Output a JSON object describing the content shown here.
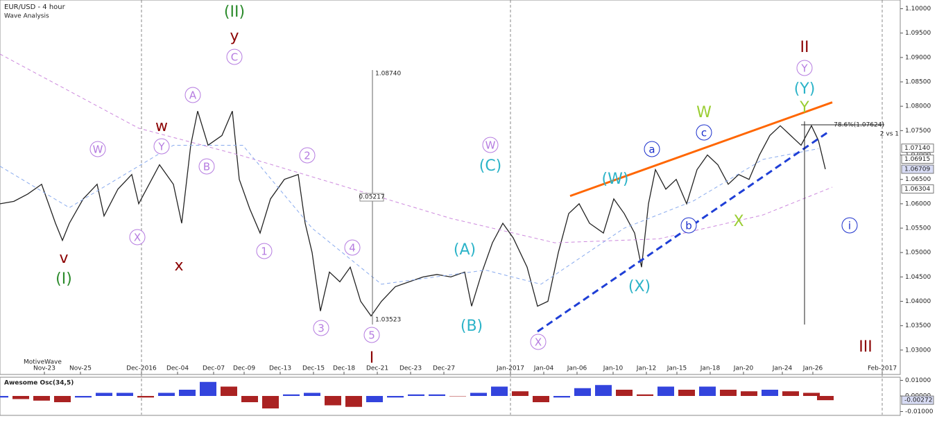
{
  "chart_data": [
    {
      "type": "line",
      "title": "EUR/USD - 4 hour",
      "subtitle": "Wave Analysis",
      "footer": "MotiveWave",
      "xlim": [
        0,
        322
      ],
      "ylim": [
        1.025,
        1.1015
      ],
      "xticks": [
        {
          "value": 16,
          "label": "Nov-23"
        },
        {
          "value": 29,
          "label": "Nov-25"
        },
        {
          "value": 51,
          "label": "Dec-2016"
        },
        {
          "value": 64,
          "label": "Dec-04"
        },
        {
          "value": 77,
          "label": "Dec-07"
        },
        {
          "value": 88,
          "label": "Dec-09"
        },
        {
          "value": 101,
          "label": "Dec-13"
        },
        {
          "value": 113,
          "label": "Dec-15"
        },
        {
          "value": 124,
          "label": "Dec-18"
        },
        {
          "value": 136,
          "label": "Dec-21"
        },
        {
          "value": 148,
          "label": "Dec-23"
        },
        {
          "value": 160,
          "label": "Dec-27"
        },
        {
          "value": 184,
          "label": "Jan-2017"
        },
        {
          "value": 196,
          "label": "Jan-04"
        },
        {
          "value": 208,
          "label": "Jan-06"
        },
        {
          "value": 221,
          "label": "Jan-10"
        },
        {
          "value": 233,
          "label": "Jan-12"
        },
        {
          "value": 244,
          "label": "Jan-15"
        },
        {
          "value": 256,
          "label": "Jan-18"
        },
        {
          "value": 268,
          "label": "Jan-20"
        },
        {
          "value": 282,
          "label": "Jan-24"
        },
        {
          "value": 293,
          "label": "Jan-26"
        },
        {
          "value": 318,
          "label": "Feb-2017"
        }
      ],
      "separators": [
        51,
        184,
        318
      ],
      "yticks": [
        {
          "value": 1.03,
          "label": "1.03000"
        },
        {
          "value": 1.035,
          "label": "1.03500"
        },
        {
          "value": 1.04,
          "label": "1.04000"
        },
        {
          "value": 1.045,
          "label": "1.04500"
        },
        {
          "value": 1.05,
          "label": "1.05000"
        },
        {
          "value": 1.055,
          "label": "1.05500"
        },
        {
          "value": 1.06,
          "label": "1.06000"
        },
        {
          "value": 1.065,
          "label": "1.06500"
        },
        {
          "value": 1.07,
          "label": "1.07000"
        },
        {
          "value": 1.075,
          "label": "1.07500"
        },
        {
          "value": 1.08,
          "label": "1.08000"
        },
        {
          "value": 1.085,
          "label": "1.08500"
        },
        {
          "value": 1.09,
          "label": "1.09000"
        },
        {
          "value": 1.095,
          "label": "1.09500"
        },
        {
          "value": 1.1,
          "label": "1.10000"
        }
      ],
      "price_tags": [
        {
          "value": 1.0714,
          "label": "1.07140",
          "highlight": false
        },
        {
          "value": 1.06915,
          "label": "1.06915",
          "highlight": false
        },
        {
          "value": 1.06709,
          "label": "1.06709",
          "highlight": true
        },
        {
          "value": 1.06304,
          "label": "1.06304",
          "highlight": false
        }
      ],
      "series": [
        {
          "color": "#222222",
          "dash": false,
          "x": [
            0,
            5,
            10,
            15,
            20,
            22.5,
            25,
            30,
            35,
            37.5,
            42.5,
            47.5,
            50,
            53.75,
            57.5,
            62.5,
            65.5,
            68.75,
            71.25,
            75,
            80,
            83.75,
            86.25,
            90,
            93.75,
            97.5,
            102.5,
            107.5,
            110,
            112.5,
            115.5,
            118.75,
            122.5,
            126.25,
            130,
            133.75,
            137.5,
            142.5,
            147.5,
            152.5,
            157.5,
            162.5,
            167.5,
            170,
            173.75,
            177.5,
            181.25,
            185,
            190,
            193.75,
            197.5,
            201.25,
            205,
            208.75,
            212.5,
            217.5,
            221.25,
            225,
            228.75,
            231.25,
            233.75,
            236.25,
            240,
            243.75,
            247.5,
            251.25,
            255,
            258.75,
            262.5,
            266.25,
            270,
            273.75,
            277.5,
            281.25,
            285,
            288.75,
            292.5,
            295,
            297.5
          ],
          "values": [
            1.06,
            1.0605,
            1.062,
            1.064,
            1.056,
            1.0525,
            1.056,
            1.061,
            1.064,
            1.0575,
            1.063,
            1.066,
            1.06,
            1.064,
            1.068,
            1.064,
            1.056,
            1.072,
            1.079,
            1.072,
            1.074,
            1.079,
            1.065,
            1.059,
            1.054,
            1.061,
            1.065,
            1.066,
            1.056,
            1.05,
            1.038,
            1.046,
            1.044,
            1.047,
            1.04,
            1.037,
            1.04,
            1.043,
            1.044,
            1.045,
            1.0455,
            1.045,
            1.046,
            1.039,
            1.046,
            1.052,
            1.056,
            1.053,
            1.047,
            1.039,
            1.04,
            1.05,
            1.058,
            1.06,
            1.056,
            1.054,
            1.061,
            1.058,
            1.054,
            1.047,
            1.06,
            1.067,
            1.063,
            1.065,
            1.06,
            1.067,
            1.07,
            1.068,
            1.064,
            1.066,
            1.065,
            1.07,
            1.074,
            1.076,
            1.074,
            1.072,
            1.076,
            1.073,
            1.0671
          ]
        },
        {
          "color": "#cc88dd",
          "dash": true,
          "x": [
            0,
            50,
            87.5,
            125,
            162.5,
            200,
            237.5,
            275,
            300
          ],
          "values": [
            1.0907,
            1.0755,
            1.0698,
            1.0634,
            1.057,
            1.052,
            1.0528,
            1.0577,
            1.0634
          ]
        },
        {
          "color": "#88aaee",
          "dash": true,
          "x": [
            0,
            25,
            62.5,
            87.5,
            112.5,
            137.5,
            175,
            195,
            225,
            250,
            275,
            295
          ],
          "values": [
            1.0677,
            1.0592,
            1.072,
            1.072,
            1.055,
            1.0435,
            1.0464,
            1.0435,
            1.055,
            1.0606,
            1.0691,
            1.0713
          ]
        }
      ],
      "trendlines": [
        {
          "color": "#ff6600",
          "dash": false,
          "x": [
            205.5,
            300
          ],
          "values": [
            1.0616,
            1.0808
          ]
        },
        {
          "color": "#1f3fd6",
          "dash": true,
          "x": [
            193.75,
            298.75
          ],
          "values": [
            1.0338,
            1.0748
          ]
        }
      ],
      "labels": [
        "1.08740",
        "0.05217",
        "1.03523",
        "78.6%(1.07624)",
        "2 vs 1"
      ],
      "annotations": [
        {
          "text": "(II)",
          "color": "#2a8a2a",
          "circled": false
        },
        {
          "text": "y",
          "color": "#8b0000",
          "circled": false
        },
        {
          "text": "C",
          "color": "#b57be0",
          "circled": true
        },
        {
          "text": "A",
          "color": "#b57be0",
          "circled": true
        },
        {
          "text": "B",
          "color": "#b57be0",
          "circled": true
        },
        {
          "text": "W",
          "color": "#b57be0",
          "circled": true
        },
        {
          "text": "Y",
          "color": "#b57be0",
          "circled": true
        },
        {
          "text": "w",
          "color": "#8b0000",
          "circled": false
        },
        {
          "text": "X",
          "color": "#b57be0",
          "circled": true
        },
        {
          "text": "x",
          "color": "#8b0000",
          "circled": false
        },
        {
          "text": "v",
          "color": "#8b0000",
          "circled": false
        },
        {
          "text": "(I)",
          "color": "#2a8a2a",
          "circled": false
        },
        {
          "text": "2",
          "color": "#b57be0",
          "circled": true
        },
        {
          "text": "1",
          "color": "#b57be0",
          "circled": true
        },
        {
          "text": "3",
          "color": "#b57be0",
          "circled": true
        },
        {
          "text": "4",
          "color": "#b57be0",
          "circled": true
        },
        {
          "text": "5",
          "color": "#b57be0",
          "circled": true
        },
        {
          "text": "I",
          "color": "#8b0000",
          "circled": false
        },
        {
          "text": "W",
          "color": "#b57be0",
          "circled": true
        },
        {
          "text": "(C)",
          "color": "#2bb3c8",
          "circled": false
        },
        {
          "text": "(A)",
          "color": "#2bb3c8",
          "circled": false
        },
        {
          "text": "(B)",
          "color": "#2bb3c8",
          "circled": false
        },
        {
          "text": "X",
          "color": "#b57be0",
          "circled": true
        },
        {
          "text": "(W)",
          "color": "#2bb3c8",
          "circled": false
        },
        {
          "text": "(X)",
          "color": "#2bb3c8",
          "circled": false
        },
        {
          "text": "a",
          "color": "#1a2fcc",
          "circled": true
        },
        {
          "text": "b",
          "color": "#1a2fcc",
          "circled": true
        },
        {
          "text": "c",
          "color": "#1a2fcc",
          "circled": true
        },
        {
          "text": "W",
          "color": "#9acd32",
          "circled": false
        },
        {
          "text": "X",
          "color": "#9acd32",
          "circled": false
        },
        {
          "text": "Y",
          "color": "#9acd32",
          "circled": false
        },
        {
          "text": "(Y)",
          "color": "#2bb3c8",
          "circled": false
        },
        {
          "text": "Y",
          "color": "#b57be0",
          "circled": true
        },
        {
          "text": "II",
          "color": "#8b0000",
          "circled": false
        },
        {
          "text": "III",
          "color": "#8b0000",
          "circled": false
        },
        {
          "text": "i",
          "color": "#1a2fcc",
          "circled": true
        }
      ]
    },
    {
      "type": "bar",
      "title": "Awesome Osc(34,5)",
      "xlim": [
        0,
        322
      ],
      "ylim": [
        -0.012,
        0.012
      ],
      "yticks": [
        {
          "value": 0.01,
          "label": "0.01000"
        },
        {
          "value": 0,
          "label": "0.00000"
        },
        {
          "value": -0.01,
          "label": "-0.01000"
        }
      ],
      "current": {
        "value": -0.00272,
        "label": "-0.00272"
      },
      "colors": [
        "#3344dd",
        "#aa2222"
      ],
      "x": [
        0,
        7.5,
        15,
        22.5,
        30,
        37.5,
        45,
        52.5,
        60,
        67.5,
        75,
        82.5,
        90,
        97.5,
        105,
        112.5,
        120,
        127.5,
        135,
        142.5,
        150,
        157.5,
        165,
        172.5,
        180,
        187.5,
        195,
        202.5,
        210,
        217.5,
        225,
        232.5,
        240,
        247.5,
        255,
        262.5,
        270,
        277.5,
        285,
        292.5,
        297.5
      ],
      "values": [
        -0.001,
        -0.002,
        -0.003,
        -0.004,
        -0.001,
        0.002,
        0.002,
        -0.001,
        0.002,
        0.004,
        0.009,
        0.006,
        -0.004,
        -0.008,
        0.001,
        0.002,
        -0.006,
        -0.007,
        -0.004,
        -0.001,
        0.001,
        0.001,
        0,
        0.002,
        0.006,
        0.003,
        -0.004,
        -0.001,
        0.005,
        0.007,
        0.004,
        0.001,
        0.006,
        0.004,
        0.006,
        0.004,
        0.003,
        0.004,
        0.003,
        0.002,
        -0.00272
      ]
    }
  ]
}
